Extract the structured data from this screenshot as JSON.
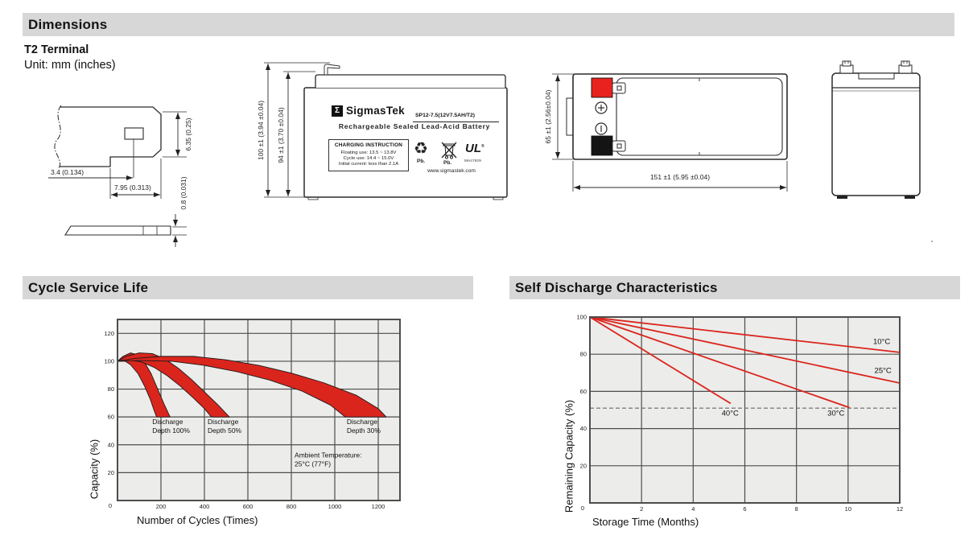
{
  "header": {
    "dimensions_title": "Dimensions",
    "terminal_type": "T2 Terminal",
    "unit_note": "Unit: mm (inches)"
  },
  "terminal_drawing": {
    "dim_offset": "3.4 (0.134)",
    "dim_pitch": "7.95 (0.313)",
    "dim_height": "6.35 (0.25)",
    "dim_thickness": "0.8 (0.031)"
  },
  "front_view": {
    "dim_total_height": "100 ±1 (3.94 ±0.04)",
    "dim_case_height": "94 ±1 (3.70 ±0.04)",
    "label": {
      "logo_glyph": "Σ",
      "brand": "SigmasTek",
      "model": "SP12-7.5(12V7.5AH/T2)",
      "subtitle": "Rechargeable Sealed Lead-Acid Battery",
      "charging_title": "CHARGING INSTRUCTION",
      "charging_lines": [
        "Floating use: 13.5 ~ 13.8V",
        "Cycle use: 14.4 ~ 15.0V",
        "Initial current: less than 2.1A"
      ],
      "pb1": "Pb.",
      "pb2": "Pb.",
      "ul_text": "UL",
      "ul_reg": "®",
      "ul_code": "MH47929",
      "recycle_glyph": "♻",
      "website": "www.sigmastek.com"
    }
  },
  "top_view": {
    "dim_width": "65 ±1 (2.56±0.04)",
    "dim_length": "151 ±1 (5.95 ±0.04)",
    "positive_color": "#e8231f",
    "negative_color": "#141414"
  },
  "sections": {
    "cycle_title": "Cycle Service Life",
    "self_title": "Self Discharge Characteristics"
  },
  "chart_data": [
    {
      "type": "area",
      "section_title": "Cycle Service Life",
      "xlabel": "Number of Cycles (Times)",
      "ylabel": "Capacity (%)",
      "xlim": [
        0,
        1300
      ],
      "ylim": [
        0,
        130
      ],
      "xticks": [
        200,
        400,
        600,
        800,
        1000,
        1200
      ],
      "yticks": [
        0,
        20,
        40,
        60,
        80,
        100,
        120
      ],
      "origin_label": "0",
      "grid": true,
      "plot_bg": "#ececea",
      "grid_color": "#4d4d4d",
      "band_color": "#da251d",
      "outline_color": "#1a1a1a",
      "bands": [
        {
          "name": "Discharge Depth 100%",
          "upper": [
            [
              0,
              100
            ],
            [
              25,
              103.5
            ],
            [
              60,
              106
            ],
            [
              95,
              104.5
            ],
            [
              125,
              99
            ],
            [
              155,
              91
            ],
            [
              185,
              80
            ],
            [
              215,
              69
            ],
            [
              242,
              60
            ]
          ],
          "lower": [
            [
              0,
              100
            ],
            [
              30,
              100.5
            ],
            [
              60,
              97.5
            ],
            [
              95,
              91
            ],
            [
              125,
              82
            ],
            [
              150,
              73
            ],
            [
              170,
              64
            ],
            [
              180,
              60
            ]
          ]
        },
        {
          "name": "Discharge Depth 50%",
          "upper": [
            [
              0,
              100
            ],
            [
              40,
              103.5
            ],
            [
              100,
              106
            ],
            [
              160,
              105.5
            ],
            [
              220,
              101.5
            ],
            [
              280,
              95
            ],
            [
              340,
              87
            ],
            [
              400,
              78
            ],
            [
              460,
              69
            ],
            [
              515,
              60
            ]
          ],
          "lower": [
            [
              0,
              100
            ],
            [
              50,
              101
            ],
            [
              110,
              99.5
            ],
            [
              170,
              95.5
            ],
            [
              230,
              89.5
            ],
            [
              290,
              82
            ],
            [
              350,
              73.5
            ],
            [
              400,
              66
            ],
            [
              432,
              60
            ]
          ]
        },
        {
          "name": "Discharge Depth 30%",
          "upper": [
            [
              0,
              100
            ],
            [
              80,
              102
            ],
            [
              200,
              103.5
            ],
            [
              350,
              103.5
            ],
            [
              500,
              101
            ],
            [
              650,
              97
            ],
            [
              800,
              91.5
            ],
            [
              950,
              84.5
            ],
            [
              1100,
              75.5
            ],
            [
              1200,
              66
            ],
            [
              1237,
              60
            ]
          ],
          "lower": [
            [
              0,
              100
            ],
            [
              100,
              100.5
            ],
            [
              250,
              100
            ],
            [
              400,
              97
            ],
            [
              550,
              92.5
            ],
            [
              700,
              86.5
            ],
            [
              850,
              78.5
            ],
            [
              980,
              68.5
            ],
            [
              1048,
              60
            ]
          ]
        }
      ],
      "annotations": [
        {
          "lines": [
            "Discharge",
            "Depth 100%"
          ],
          "x": 160,
          "y": 55
        },
        {
          "lines": [
            "Discharge",
            "Depth 50%"
          ],
          "x": 415,
          "y": 55
        },
        {
          "lines": [
            "Discharge",
            "Depth 30%"
          ],
          "x": 1055,
          "y": 55
        },
        {
          "lines": [
            "Ambient Temperature:",
            "25°C (77°F)"
          ],
          "x": 815,
          "y": 31
        }
      ]
    },
    {
      "type": "line",
      "section_title": "Self Discharge Characteristics",
      "xlabel": "Storage Time (Months)",
      "ylabel": "Remaining Capacity (%)",
      "xlim": [
        0,
        12
      ],
      "ylim": [
        0,
        100
      ],
      "xticks": [
        2,
        4,
        6,
        8,
        10,
        12
      ],
      "yticks": [
        0,
        20,
        40,
        60,
        80,
        100
      ],
      "origin_label": "0",
      "grid": true,
      "plot_bg": "#ececea",
      "grid_color": "#4d4d4d",
      "line_color": "#da251d",
      "dashed_guide_y": 51,
      "series": [
        {
          "name": "10°C",
          "points": [
            [
              0,
              100
            ],
            [
              12,
              81
            ]
          ],
          "label_pos": [
            10.97,
            85.5
          ]
        },
        {
          "name": "25°C",
          "points": [
            [
              0,
              100
            ],
            [
              12,
              64.5
            ]
          ],
          "label_pos": [
            11.02,
            70
          ]
        },
        {
          "name": "30°C",
          "points": [
            [
              0,
              100
            ],
            [
              10.05,
              51.3
            ]
          ],
          "label_pos": [
            9.2,
            47
          ]
        },
        {
          "name": "40°C",
          "points": [
            [
              0,
              100
            ],
            [
              5.45,
              53.5
            ]
          ],
          "label_pos": [
            5.1,
            47
          ]
        }
      ]
    }
  ]
}
